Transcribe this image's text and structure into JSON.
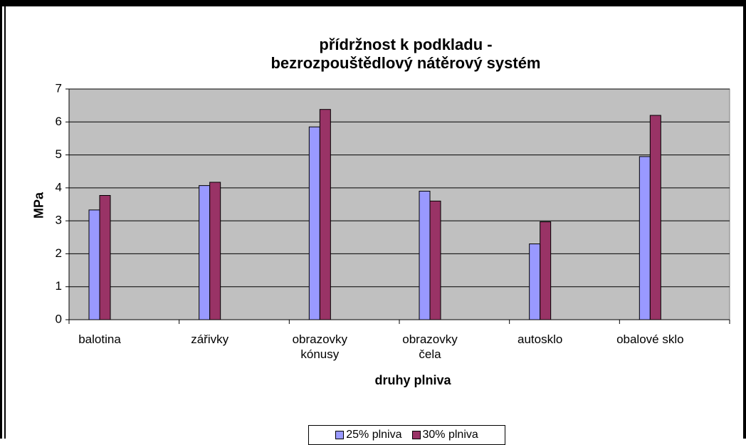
{
  "chart_data": {
    "type": "bar",
    "title": "přídržnost k podkladu -\nbezrozpouštědlový nátěrový systém",
    "x_label": "druhy plniva",
    "y_label": "MPa",
    "categories": [
      "balotina",
      "zářivky",
      "obrazovky\nkónusy",
      "obrazovky\nčela",
      "autosklo",
      "obalové sklo"
    ],
    "series": [
      {
        "name": "25% plniva",
        "color": "#9999ff",
        "values": [
          3.33,
          4.07,
          5.85,
          3.9,
          2.3,
          4.95
        ]
      },
      {
        "name": "30% plniva",
        "color": "#993366",
        "values": [
          3.77,
          4.17,
          6.38,
          3.6,
          2.97,
          6.2
        ]
      }
    ],
    "ylim": [
      0,
      7
    ],
    "yticks": [
      0,
      1,
      2,
      3,
      4,
      5,
      6,
      7
    ],
    "grid": true,
    "legend": "bottom"
  }
}
